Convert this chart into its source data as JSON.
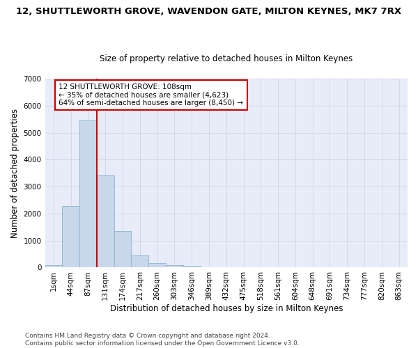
{
  "title_line1": "12, SHUTTLEWORTH GROVE, WAVENDON GATE, MILTON KEYNES, MK7 7RX",
  "title_line2": "Size of property relative to detached houses in Milton Keynes",
  "xlabel": "Distribution of detached houses by size in Milton Keynes",
  "ylabel": "Number of detached properties",
  "categories": [
    "1sqm",
    "44sqm",
    "87sqm",
    "131sqm",
    "174sqm",
    "217sqm",
    "260sqm",
    "303sqm",
    "346sqm",
    "389sqm",
    "432sqm",
    "475sqm",
    "518sqm",
    "561sqm",
    "604sqm",
    "648sqm",
    "691sqm",
    "734sqm",
    "777sqm",
    "820sqm",
    "863sqm"
  ],
  "bar_values": [
    80,
    2270,
    5450,
    3420,
    1340,
    440,
    175,
    100,
    55,
    0,
    0,
    0,
    0,
    0,
    0,
    0,
    0,
    0,
    0,
    0,
    0
  ],
  "bar_color": "#c8d8ea",
  "bar_edge_color": "#8ab4d4",
  "vline_index": 2.5,
  "annotation_text": "12 SHUTTLEWORTH GROVE: 108sqm\n← 35% of detached houses are smaller (4,623)\n64% of semi-detached houses are larger (8,450) →",
  "annotation_box_color": "#ffffff",
  "annotation_box_edge": "#cc0000",
  "vline_color": "#cc0000",
  "ylim": [
    0,
    7000
  ],
  "yticks": [
    0,
    1000,
    2000,
    3000,
    4000,
    5000,
    6000,
    7000
  ],
  "grid_color": "#cdd6e8",
  "background_color": "#e8ecf8",
  "footer_text": "Contains HM Land Registry data © Crown copyright and database right 2024.\nContains public sector information licensed under the Open Government Licence v3.0.",
  "title_fontsize": 9.5,
  "subtitle_fontsize": 8.5,
  "axis_label_fontsize": 8.5,
  "tick_fontsize": 7.5,
  "annotation_fontsize": 7.5,
  "footer_fontsize": 6.5
}
